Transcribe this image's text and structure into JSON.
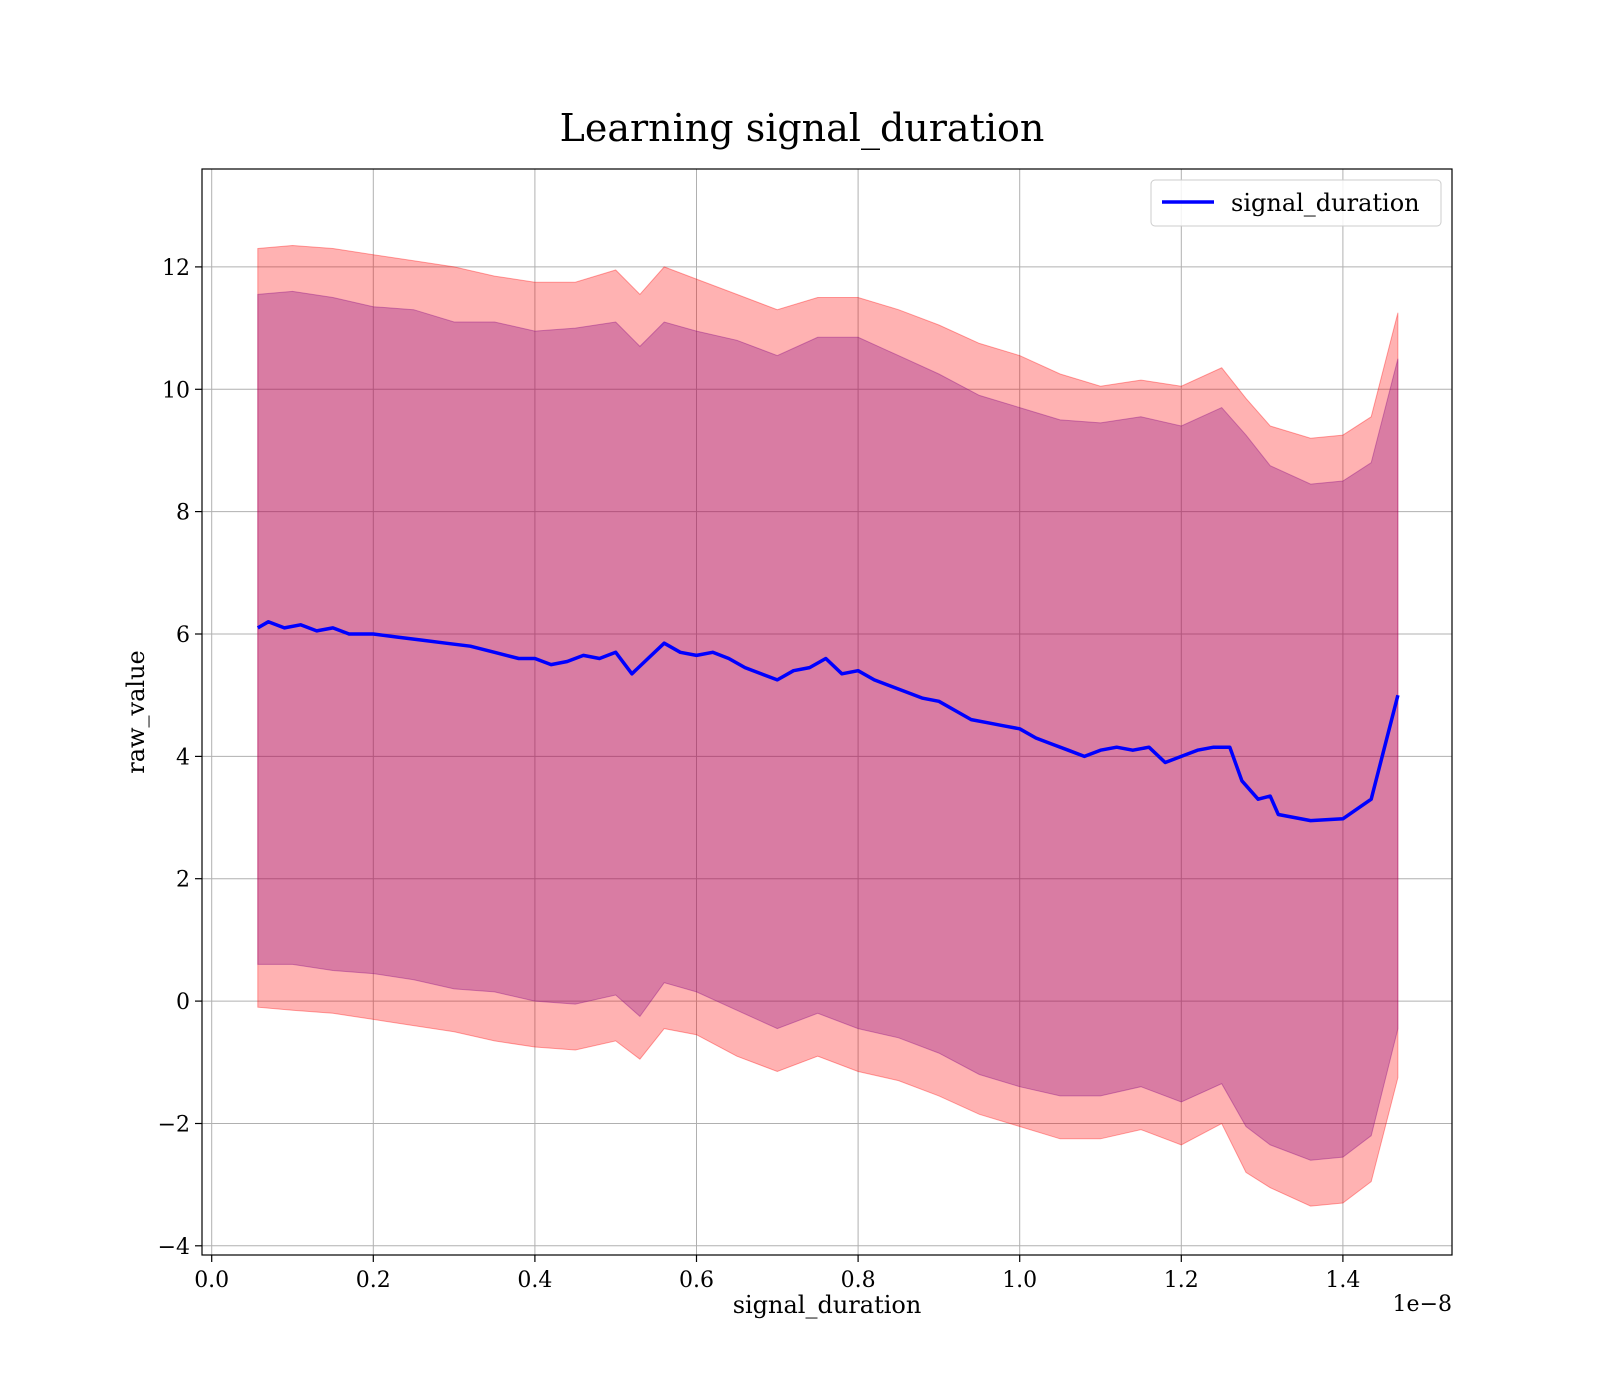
{
  "chart_data": {
    "type": "line",
    "title": "Learning signal_duration",
    "xlabel": "signal_duration",
    "ylabel": "raw_value",
    "x_offset_label": "1e−8",
    "xlim": [
      -0.012,
      1.535
    ],
    "ylim": [
      -4.15,
      13.6
    ],
    "x_ticks": [
      0.0,
      0.2,
      0.4,
      0.6,
      0.8,
      1.0,
      1.2,
      1.4
    ],
    "x_tick_labels": [
      "0.0",
      "0.2",
      "0.4",
      "0.6",
      "0.8",
      "1.0",
      "1.2",
      "1.4"
    ],
    "y_ticks": [
      -4,
      -2,
      0,
      2,
      4,
      6,
      8,
      10,
      12
    ],
    "y_tick_labels": [
      "−4",
      "−2",
      "0",
      "2",
      "4",
      "6",
      "8",
      "10",
      "12"
    ],
    "grid": true,
    "legend_position": "top-right",
    "colors": {
      "line": "#0000ff",
      "band_outer": "#ff0000",
      "band_inner": "#800080"
    },
    "series": [
      {
        "name": "signal_duration",
        "x": [
          0.057,
          0.07,
          0.09,
          0.11,
          0.13,
          0.15,
          0.17,
          0.2,
          0.23,
          0.26,
          0.29,
          0.32,
          0.35,
          0.38,
          0.4,
          0.42,
          0.44,
          0.46,
          0.48,
          0.5,
          0.52,
          0.54,
          0.56,
          0.58,
          0.6,
          0.62,
          0.64,
          0.66,
          0.68,
          0.7,
          0.72,
          0.74,
          0.76,
          0.78,
          0.8,
          0.82,
          0.84,
          0.86,
          0.88,
          0.9,
          0.92,
          0.94,
          0.96,
          0.98,
          1.0,
          1.02,
          1.04,
          1.06,
          1.08,
          1.1,
          1.12,
          1.14,
          1.16,
          1.18,
          1.2,
          1.22,
          1.24,
          1.26,
          1.275,
          1.295,
          1.31,
          1.32,
          1.36,
          1.4,
          1.435,
          1.468
        ],
        "values": [
          6.1,
          6.2,
          6.1,
          6.15,
          6.05,
          6.1,
          6.0,
          6.0,
          5.95,
          5.9,
          5.85,
          5.8,
          5.7,
          5.6,
          5.6,
          5.5,
          5.55,
          5.65,
          5.6,
          5.7,
          5.35,
          5.6,
          5.85,
          5.7,
          5.65,
          5.7,
          5.6,
          5.45,
          5.35,
          5.25,
          5.4,
          5.45,
          5.6,
          5.35,
          5.4,
          5.25,
          5.15,
          5.05,
          4.95,
          4.9,
          4.75,
          4.6,
          4.55,
          4.5,
          4.45,
          4.3,
          4.2,
          4.1,
          4.0,
          4.1,
          4.15,
          4.1,
          4.15,
          3.9,
          4.0,
          4.1,
          4.15,
          4.15,
          3.6,
          3.3,
          3.35,
          3.05,
          2.95,
          2.98,
          3.3,
          5.0
        ]
      }
    ],
    "bands": [
      {
        "color": "#ff0000",
        "x": [
          0.057,
          0.1,
          0.15,
          0.2,
          0.25,
          0.3,
          0.35,
          0.4,
          0.45,
          0.5,
          0.53,
          0.56,
          0.6,
          0.65,
          0.7,
          0.75,
          0.8,
          0.85,
          0.9,
          0.95,
          1.0,
          1.05,
          1.1,
          1.15,
          1.2,
          1.25,
          1.28,
          1.31,
          1.36,
          1.4,
          1.435,
          1.468
        ],
        "upper": [
          12.3,
          12.35,
          12.3,
          12.2,
          12.1,
          12.0,
          11.85,
          11.75,
          11.75,
          11.95,
          11.55,
          12.0,
          11.8,
          11.55,
          11.3,
          11.5,
          11.5,
          11.3,
          11.05,
          10.75,
          10.55,
          10.25,
          10.05,
          10.15,
          10.05,
          10.35,
          9.85,
          9.4,
          9.2,
          9.25,
          9.55,
          11.25
        ],
        "lower": [
          -0.1,
          -0.15,
          -0.2,
          -0.3,
          -0.4,
          -0.5,
          -0.65,
          -0.75,
          -0.8,
          -0.65,
          -0.95,
          -0.45,
          -0.55,
          -0.9,
          -1.15,
          -0.9,
          -1.15,
          -1.3,
          -1.55,
          -1.85,
          -2.05,
          -2.25,
          -2.25,
          -2.1,
          -2.35,
          -2.0,
          -2.8,
          -3.05,
          -3.35,
          -3.3,
          -2.95,
          -1.25
        ]
      },
      {
        "color": "#800080",
        "x": [
          0.057,
          0.1,
          0.15,
          0.2,
          0.25,
          0.3,
          0.35,
          0.4,
          0.45,
          0.5,
          0.53,
          0.56,
          0.6,
          0.65,
          0.7,
          0.75,
          0.8,
          0.85,
          0.9,
          0.95,
          1.0,
          1.05,
          1.1,
          1.15,
          1.2,
          1.25,
          1.28,
          1.31,
          1.36,
          1.4,
          1.435,
          1.468
        ],
        "upper": [
          11.55,
          11.6,
          11.5,
          11.35,
          11.3,
          11.1,
          11.1,
          10.95,
          11.0,
          11.1,
          10.7,
          11.1,
          10.95,
          10.8,
          10.55,
          10.85,
          10.85,
          10.55,
          10.25,
          9.9,
          9.7,
          9.5,
          9.45,
          9.55,
          9.4,
          9.7,
          9.25,
          8.75,
          8.45,
          8.5,
          8.8,
          10.5
        ],
        "lower": [
          0.6,
          0.6,
          0.5,
          0.45,
          0.35,
          0.2,
          0.15,
          0.0,
          -0.05,
          0.1,
          -0.25,
          0.3,
          0.15,
          -0.15,
          -0.45,
          -0.2,
          -0.45,
          -0.6,
          -0.85,
          -1.2,
          -1.4,
          -1.55,
          -1.55,
          -1.4,
          -1.65,
          -1.35,
          -2.05,
          -2.35,
          -2.6,
          -2.55,
          -2.2,
          -0.45
        ]
      }
    ]
  }
}
